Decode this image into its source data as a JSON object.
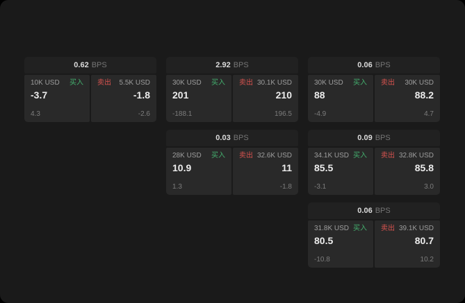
{
  "colors": {
    "background": "#000000",
    "surface": "#1a1a1a",
    "card_header": "#212121",
    "panel": "#292929",
    "buy_green": "#44b06e",
    "sell_red": "#d9534f",
    "price_text": "#ececec",
    "muted_text": "#7d7d7d"
  },
  "unit": "BPS",
  "cards": [
    {
      "spread": "0.62",
      "unit": "BPS",
      "buy": {
        "size": "10K USD",
        "side": "买入",
        "price": "-3.7",
        "sub": "4.3"
      },
      "sell": {
        "size": "5.5K USD",
        "side": "卖出",
        "price": "-1.8",
        "sub": "-2.6"
      }
    },
    {
      "spread": "2.92",
      "unit": "BPS",
      "buy": {
        "size": "30K USD",
        "side": "买入",
        "price": "201",
        "sub": "-188.1"
      },
      "sell": {
        "size": "30.1K USD",
        "side": "卖出",
        "price": "210",
        "sub": "196.5"
      }
    },
    {
      "spread": "0.06",
      "unit": "BPS",
      "buy": {
        "size": "30K USD",
        "side": "买入",
        "price": "88",
        "sub": "-4.9"
      },
      "sell": {
        "size": "30K USD",
        "side": "卖出",
        "price": "88.2",
        "sub": "4.7"
      }
    },
    {
      "spread": "0.03",
      "unit": "BPS",
      "buy": {
        "size": "28K USD",
        "side": "买入",
        "price": "10.9",
        "sub": "1.3"
      },
      "sell": {
        "size": "32.6K USD",
        "side": "卖出",
        "price": "11",
        "sub": "-1.8"
      }
    },
    {
      "spread": "0.09",
      "unit": "BPS",
      "buy": {
        "size": "34.1K USD",
        "side": "买入",
        "price": "85.5",
        "sub": "-3.1"
      },
      "sell": {
        "size": "32.8K USD",
        "side": "卖出",
        "price": "85.8",
        "sub": "3.0"
      }
    },
    {
      "spread": "0.06",
      "unit": "BPS",
      "buy": {
        "size": "31.8K USD",
        "side": "买入",
        "price": "80.5",
        "sub": "-10.8"
      },
      "sell": {
        "size": "39.1K USD",
        "side": "卖出",
        "price": "80.7",
        "sub": "10.2"
      }
    }
  ]
}
